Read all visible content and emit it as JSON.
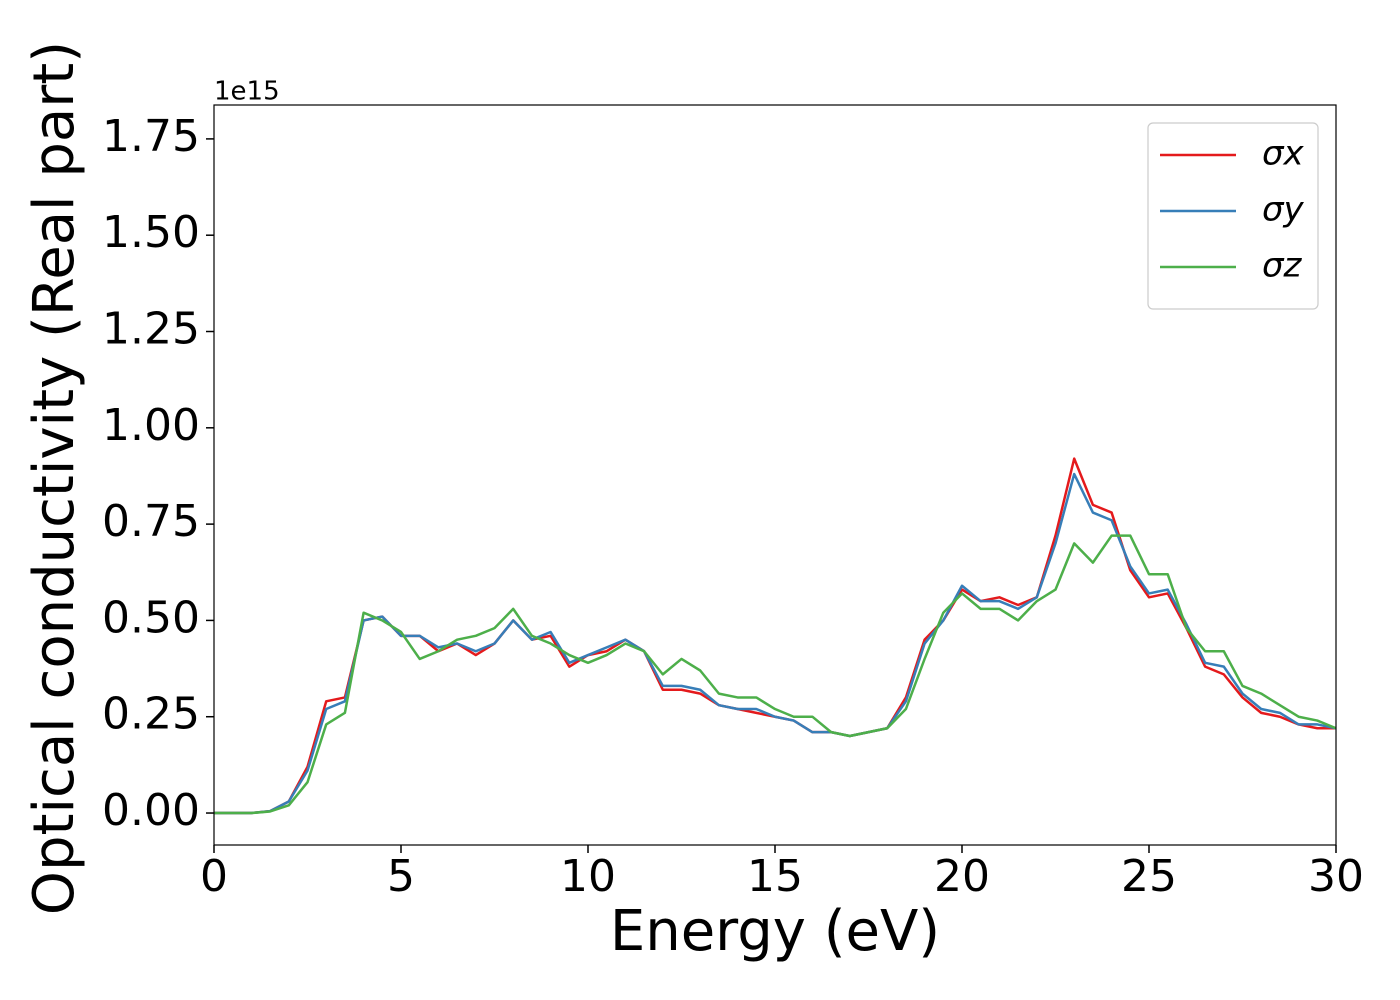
{
  "chart_data": {
    "type": "line",
    "xlabel": "Energy (eV)",
    "ylabel": "Optical conductivity (Real part)",
    "y_offset_label": "1e15",
    "x": [
      0,
      0.5,
      1,
      1.5,
      2,
      2.5,
      3,
      3.5,
      4,
      4.5,
      5,
      5.5,
      6,
      6.5,
      7,
      7.5,
      8,
      8.5,
      9,
      9.5,
      10,
      10.5,
      11,
      11.5,
      12,
      12.5,
      13,
      13.5,
      14,
      14.5,
      15,
      15.5,
      16,
      16.5,
      17,
      17.5,
      18,
      18.5,
      19,
      19.5,
      20,
      20.5,
      21,
      21.5,
      22,
      22.5,
      23,
      23.5,
      24,
      24.5,
      25,
      25.5,
      26,
      26.5,
      27,
      27.5,
      28,
      28.5,
      29,
      29.5,
      30
    ],
    "series": [
      {
        "name": "σx",
        "color": "#e41a1c",
        "values": [
          0,
          0,
          0,
          0.005,
          0.03,
          0.12,
          0.29,
          0.3,
          0.5,
          0.51,
          0.46,
          0.46,
          0.42,
          0.44,
          0.41,
          0.44,
          0.5,
          0.45,
          0.46,
          0.38,
          0.41,
          0.42,
          0.45,
          0.42,
          0.32,
          0.32,
          0.31,
          0.28,
          0.27,
          0.26,
          0.25,
          0.24,
          0.21,
          0.21,
          0.2,
          0.21,
          0.22,
          0.3,
          0.45,
          0.5,
          0.58,
          0.55,
          0.56,
          0.54,
          0.56,
          0.72,
          0.92,
          0.8,
          0.78,
          0.63,
          0.56,
          0.57,
          0.48,
          0.38,
          0.36,
          0.3,
          0.26,
          0.25,
          0.23,
          0.22,
          0.22
        ]
      },
      {
        "name": "σy",
        "color": "#377eb8",
        "values": [
          0,
          0,
          0,
          0.005,
          0.03,
          0.11,
          0.27,
          0.29,
          0.5,
          0.51,
          0.46,
          0.46,
          0.43,
          0.44,
          0.42,
          0.44,
          0.5,
          0.45,
          0.47,
          0.39,
          0.41,
          0.43,
          0.45,
          0.42,
          0.33,
          0.33,
          0.32,
          0.28,
          0.27,
          0.27,
          0.25,
          0.24,
          0.21,
          0.21,
          0.2,
          0.21,
          0.22,
          0.29,
          0.44,
          0.5,
          0.59,
          0.55,
          0.55,
          0.53,
          0.56,
          0.7,
          0.88,
          0.78,
          0.76,
          0.64,
          0.57,
          0.58,
          0.49,
          0.39,
          0.38,
          0.31,
          0.27,
          0.26,
          0.23,
          0.23,
          0.22
        ]
      },
      {
        "name": "σz",
        "color": "#4daf4a",
        "values": [
          0,
          0,
          0,
          0.004,
          0.02,
          0.08,
          0.23,
          0.26,
          0.52,
          0.5,
          0.47,
          0.4,
          0.42,
          0.45,
          0.46,
          0.48,
          0.53,
          0.46,
          0.44,
          0.41,
          0.39,
          0.41,
          0.44,
          0.42,
          0.36,
          0.4,
          0.37,
          0.31,
          0.3,
          0.3,
          0.27,
          0.25,
          0.25,
          0.21,
          0.2,
          0.21,
          0.22,
          0.27,
          0.4,
          0.52,
          0.57,
          0.53,
          0.53,
          0.5,
          0.55,
          0.58,
          0.7,
          0.65,
          0.72,
          0.72,
          0.62,
          0.62,
          0.48,
          0.42,
          0.42,
          0.33,
          0.31,
          0.28,
          0.25,
          0.24,
          0.22
        ]
      }
    ],
    "xlim": [
      0,
      30
    ],
    "xticks": [
      0,
      5,
      10,
      15,
      20,
      25,
      30
    ],
    "ylim": [
      -0.083,
      1.838
    ],
    "yticks": [
      {
        "value": 0,
        "label": "0.00"
      },
      0.25,
      {
        "value": 0.5,
        "label": "0.50"
      },
      0.75,
      {
        "value": 1,
        "label": "1.00"
      },
      1.25,
      {
        "value": 1.5,
        "label": "1.50"
      },
      1.75
    ],
    "grid": false,
    "legend": "upper right"
  }
}
